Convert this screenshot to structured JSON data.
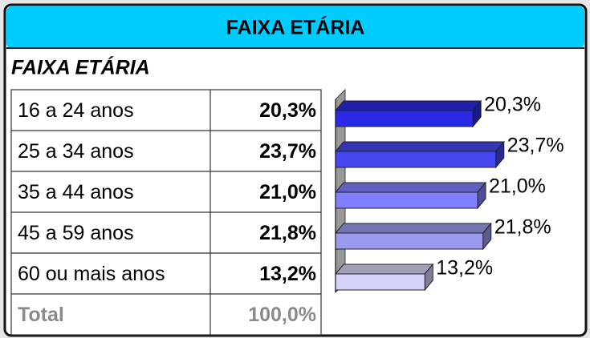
{
  "chart_data": {
    "type": "bar",
    "title": "FAIXA ETÁRIA",
    "subtitle": "FAIXA ETÁRIA",
    "categories": [
      "16 a 24 anos",
      "25 a 34 anos",
      "35 a 44 anos",
      "45 a 59 anos",
      "60 ou mais anos"
    ],
    "values": [
      20.3,
      23.7,
      21.0,
      21.8,
      13.2
    ],
    "value_labels": [
      "20,3%",
      "23,7%",
      "21,0%",
      "21,8%",
      "13,2%"
    ],
    "colors": [
      "#2a2ae6",
      "#4646ef",
      "#8080ff",
      "#9a9aee",
      "#d4d4f8"
    ],
    "xlim": [
      0,
      35
    ]
  },
  "total": {
    "label": "Total",
    "value_label": "100,0%"
  }
}
